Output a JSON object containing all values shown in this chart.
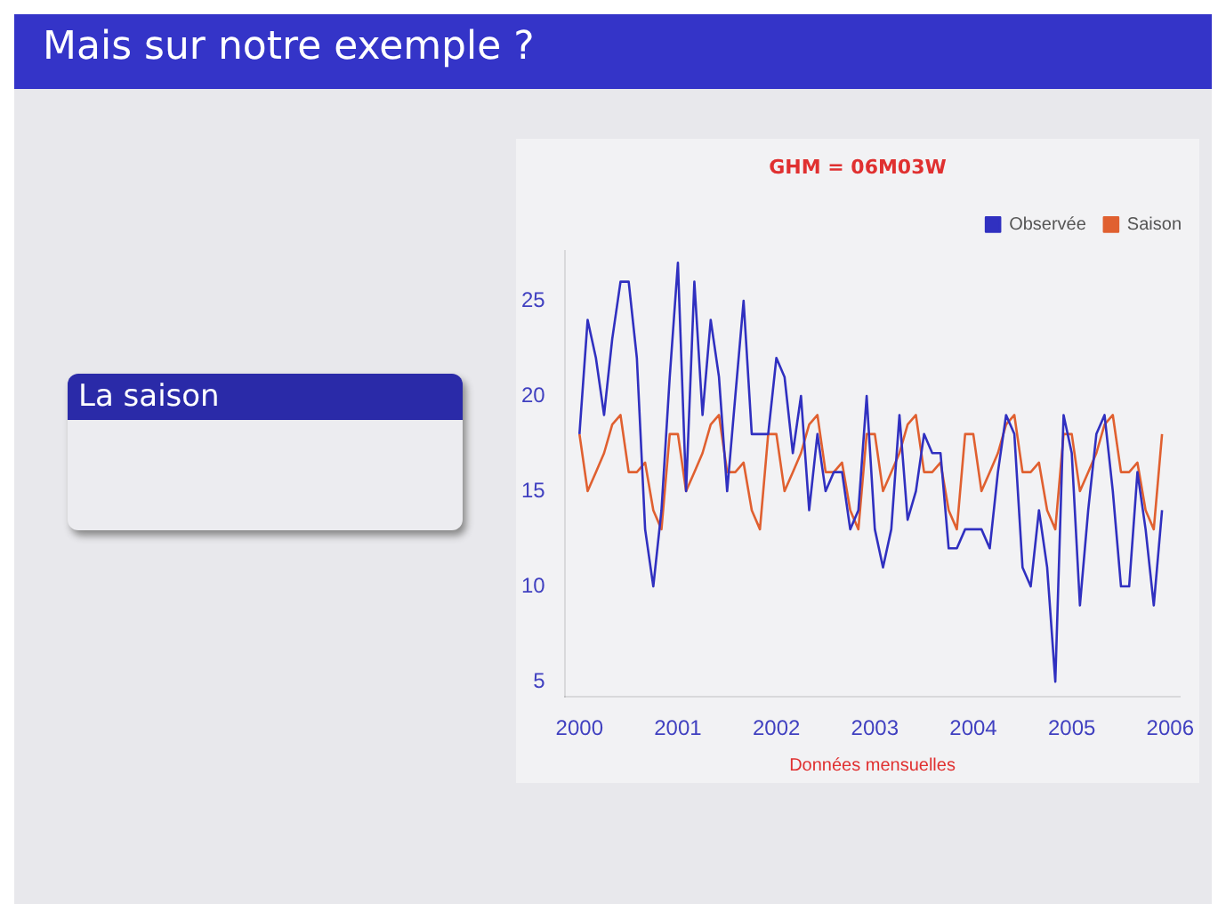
{
  "chart_data": {
    "type": "line",
    "title": "GHM = 06M03W",
    "xlabel": "Données mensuelles",
    "annotations": [
      "Mais sur notre exemple ?",
      "La saison"
    ],
    "x": [
      2000,
      2000.083,
      2000.167,
      2000.25,
      2000.333,
      2000.417,
      2000.5,
      2000.583,
      2000.667,
      2000.75,
      2000.833,
      2000.917,
      2001,
      2001.083,
      2001.167,
      2001.25,
      2001.333,
      2001.417,
      2001.5,
      2001.583,
      2001.667,
      2001.75,
      2001.833,
      2001.917,
      2002,
      2002.083,
      2002.167,
      2002.25,
      2002.333,
      2002.417,
      2002.5,
      2002.583,
      2002.667,
      2002.75,
      2002.833,
      2002.917,
      2003,
      2003.083,
      2003.167,
      2003.25,
      2003.333,
      2003.417,
      2003.5,
      2003.583,
      2003.667,
      2003.75,
      2003.833,
      2003.917,
      2004,
      2004.083,
      2004.167,
      2004.25,
      2004.333,
      2004.417,
      2004.5,
      2004.583,
      2004.667,
      2004.75,
      2004.833,
      2004.917,
      2005,
      2005.083,
      2005.167,
      2005.25,
      2005.333,
      2005.417,
      2005.5,
      2005.583,
      2005.667,
      2005.75,
      2005.833,
      2005.917
    ],
    "series": [
      {
        "name": "Observée",
        "color": "#3030c0",
        "values": [
          18,
          24,
          22,
          19,
          23,
          26,
          26,
          22,
          13,
          10,
          14,
          21,
          27,
          15,
          26,
          19,
          24,
          21,
          15,
          20,
          25,
          18,
          18,
          18,
          22,
          21,
          17,
          20,
          14,
          18,
          15,
          16,
          16,
          13,
          14,
          20,
          13,
          11,
          13,
          19,
          13.5,
          15,
          18,
          17,
          17,
          12,
          12,
          13,
          13,
          13,
          12,
          16,
          19,
          18,
          11,
          10,
          14,
          11,
          5,
          19,
          17,
          9,
          14,
          18,
          19,
          15,
          10,
          10,
          16,
          13,
          9,
          14
        ]
      },
      {
        "name": "Saison",
        "color": "#e06030",
        "values": [
          18,
          15,
          16,
          17,
          18.5,
          19,
          16,
          16,
          16.5,
          14,
          13,
          18,
          18,
          15,
          16,
          17,
          18.5,
          19,
          16,
          16,
          16.5,
          14,
          13,
          18,
          18,
          15,
          16,
          17,
          18.5,
          19,
          16,
          16,
          16.5,
          14,
          13,
          18,
          18,
          15,
          16,
          17,
          18.5,
          19,
          16,
          16,
          16.5,
          14,
          13,
          18,
          18,
          15,
          16,
          17,
          18.5,
          19,
          16,
          16,
          16.5,
          14,
          13,
          18,
          18,
          15,
          16,
          17,
          18.5,
          19,
          16,
          16,
          16.5,
          14,
          13,
          18
        ]
      }
    ],
    "xlim": [
      1999.85,
      2006.1
    ],
    "xticks": [
      2000,
      2001,
      2002,
      2003,
      2004,
      2005,
      2006
    ],
    "ylim": [
      4.2,
      27.6
    ],
    "yticks": [
      5,
      10,
      15,
      20,
      25
    ],
    "grid": false,
    "legend": "top right",
    "marker": "none",
    "line_style": "solid"
  }
}
